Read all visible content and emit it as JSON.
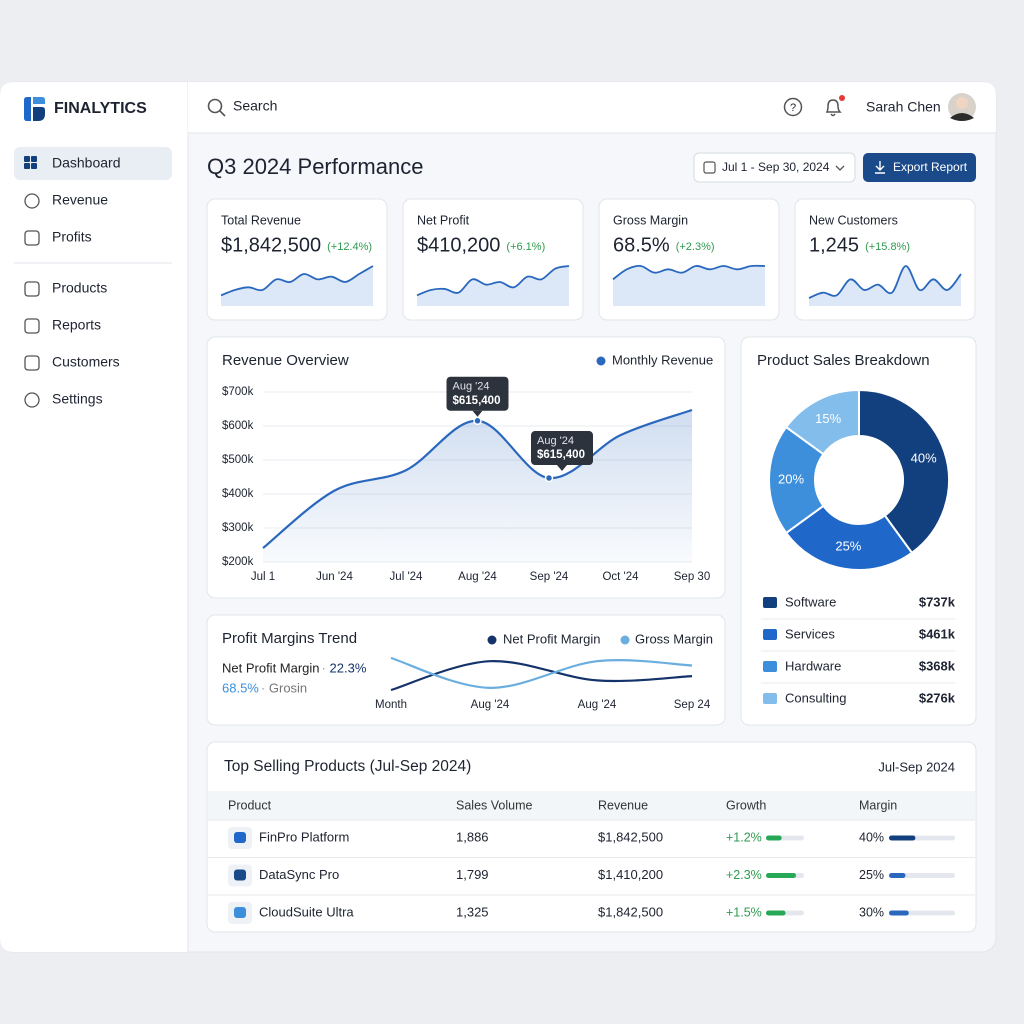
{
  "brand": "FINALYTICS",
  "nav": [
    "Dashboard",
    "Revenue",
    "Profits",
    "Products",
    "Reports",
    "Customers",
    "Settings"
  ],
  "search": "Search",
  "user": "Sarah Chen",
  "header": {
    "title": "Q3 2024 Performance",
    "date_range": "Jul 1 - Sep 30, 2024",
    "export": "Export Report"
  },
  "kpis": [
    {
      "label": "Total Revenue",
      "value": "$1,842,500",
      "change": "(+12.4%)",
      "sparkline": [
        2,
        3,
        3.5,
        3,
        5,
        4.5,
        6,
        5,
        5.5,
        4.5,
        6,
        7.5
      ]
    },
    {
      "label": "Net Profit",
      "value": "$410,200",
      "change": "(+6.1%)",
      "sparkline": [
        2,
        3,
        3.2,
        2.5,
        5,
        4,
        4.5,
        3.5,
        5.5,
        5,
        7,
        7.5
      ]
    },
    {
      "label": "Gross Margin",
      "value": "68.5%",
      "change": "(+2.3%)",
      "sparkline": [
        4,
        5.5,
        6,
        5,
        5.5,
        5,
        6,
        5.5,
        6,
        5.5,
        6,
        6
      ]
    },
    {
      "label": "New Customers",
      "value": "1,245",
      "change": "(+15.8%)",
      "sparkline": [
        1.5,
        2.5,
        2,
        5,
        3,
        4,
        2.5,
        7.5,
        3,
        5,
        3,
        6
      ]
    }
  ],
  "chart_data": [
    {
      "type": "line",
      "title": "Revenue Overview",
      "categories": [
        "Jul 1",
        "Jun '24",
        "Jul '24",
        "Aug '24",
        "Sep '24",
        "Oct '24",
        "Sep 30"
      ],
      "series": [
        {
          "name": "Monthly Revenue",
          "color": "#2a68bd",
          "values": [
            241000,
            410000,
            470000,
            615400,
            447000,
            573000,
            647000
          ]
        }
      ],
      "ylim": [
        200000,
        700000
      ],
      "yticks": [
        {
          "value": 200000,
          "label": "$200k"
        },
        {
          "value": 300000,
          "label": "$300k"
        },
        {
          "value": 400000,
          "label": "$400k"
        },
        {
          "value": 500000,
          "label": "$500k"
        },
        {
          "value": 600000,
          "label": "$600k"
        },
        {
          "value": 700000,
          "label": "$700k"
        }
      ],
      "grid": true,
      "annotations": [
        {
          "title": "Aug '24",
          "text": "$615,400"
        },
        {
          "title": "Aug '24",
          "text": "$615,400"
        }
      ]
    },
    {
      "type": "line",
      "title": "Profit Margins Trend",
      "categories": [
        "Month",
        "Aug '24",
        "Aug '24",
        "Sep 24"
      ],
      "series": [
        {
          "name": "Net Profit Margin",
          "color": "#15336b",
          "values": [
            11,
            38,
            20,
            24
          ]
        },
        {
          "name": "Gross Margin",
          "color": "#6aaee0",
          "values": [
            41,
            13,
            38,
            34
          ]
        }
      ],
      "summary": [
        [
          "Net Profit Margin",
          "22.3%"
        ],
        [
          "68.5%",
          "Grosin"
        ]
      ]
    },
    {
      "type": "pie",
      "title": "Product Sales Breakdown",
      "values": [
        40,
        25,
        20,
        15
      ],
      "value_labels": [
        "40%",
        "25%",
        "20%",
        "15%"
      ],
      "colors": [
        "#123f7e",
        "#1f67c8",
        "#3d8fdc",
        "#82bdec"
      ],
      "items": [
        {
          "name": "Software",
          "value": "$737k"
        },
        {
          "name": "Services",
          "value": "$461k"
        },
        {
          "name": "Hardware",
          "value": "$368k"
        },
        {
          "name": "Consulting",
          "value": "$276k"
        }
      ]
    }
  ],
  "table": {
    "title": "Top Selling Products (Jul-Sep 2024)",
    "period": "Jul-Sep 2024",
    "columns": [
      "Product",
      "Sales Volume",
      "Revenue",
      "Growth",
      "Margin"
    ],
    "rows": [
      {
        "product": "FinPro Platform",
        "sales_volume": "1,886",
        "revenue": "$1,842,500",
        "growth": {
          "value": 1.2,
          "label": "+1.2%"
        },
        "margin": {
          "value": 40,
          "label": "40%"
        }
      },
      {
        "product": "DataSync Pro",
        "sales_volume": "1,799",
        "revenue": "$1,410,200",
        "growth": {
          "value": 2.3,
          "label": "+2.3%"
        },
        "margin": {
          "value": 25,
          "label": "25%"
        }
      },
      {
        "product": "CloudSuite Ultra",
        "sales_volume": "1,325",
        "revenue": "$1,842,500",
        "growth": {
          "value": 1.5,
          "label": "+1.5%"
        },
        "margin": {
          "value": 30,
          "label": "30%"
        }
      }
    ]
  }
}
